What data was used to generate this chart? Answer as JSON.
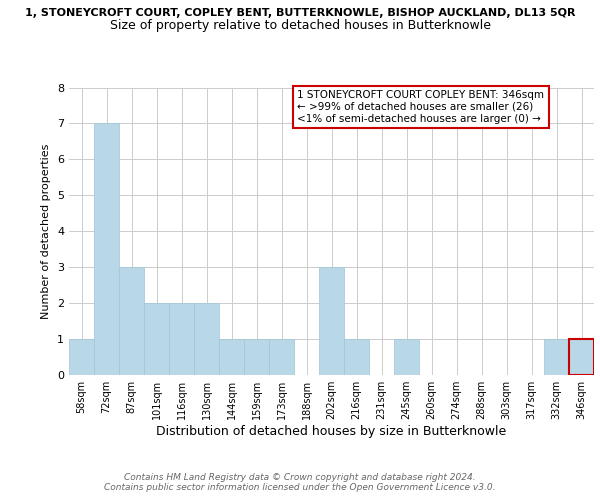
{
  "title_top": "1, STONEYCROFT COURT, COPLEY BENT, BUTTERKNOWLE, BISHOP AUCKLAND, DL13 5QR",
  "title_main": "Size of property relative to detached houses in Butterknowle",
  "xlabel": "Distribution of detached houses by size in Butterknowle",
  "ylabel": "Number of detached properties",
  "categories": [
    "58sqm",
    "72sqm",
    "87sqm",
    "101sqm",
    "116sqm",
    "130sqm",
    "144sqm",
    "159sqm",
    "173sqm",
    "188sqm",
    "202sqm",
    "216sqm",
    "231sqm",
    "245sqm",
    "260sqm",
    "274sqm",
    "288sqm",
    "303sqm",
    "317sqm",
    "332sqm",
    "346sqm"
  ],
  "values": [
    1,
    7,
    3,
    2,
    2,
    2,
    1,
    1,
    1,
    0,
    3,
    1,
    0,
    1,
    0,
    0,
    0,
    0,
    0,
    1,
    1
  ],
  "bar_color": "#b8d8e8",
  "bar_edge_color": "#a0c4d8",
  "highlight_bar_index": 20,
  "highlight_bar_edge_color": "#cc0000",
  "box_text_line1": "1 STONEYCROFT COURT COPLEY BENT: 346sqm",
  "box_text_line2": "← >99% of detached houses are smaller (26)",
  "box_text_line3": "<1% of semi-detached houses are larger (0) →",
  "box_edge_color": "#cc0000",
  "footer_line1": "Contains HM Land Registry data © Crown copyright and database right 2024.",
  "footer_line2": "Contains public sector information licensed under the Open Government Licence v3.0.",
  "ylim": [
    0,
    8
  ],
  "yticks": [
    0,
    1,
    2,
    3,
    4,
    5,
    6,
    7,
    8
  ],
  "background_color": "#ffffff",
  "grid_color": "#cccccc"
}
